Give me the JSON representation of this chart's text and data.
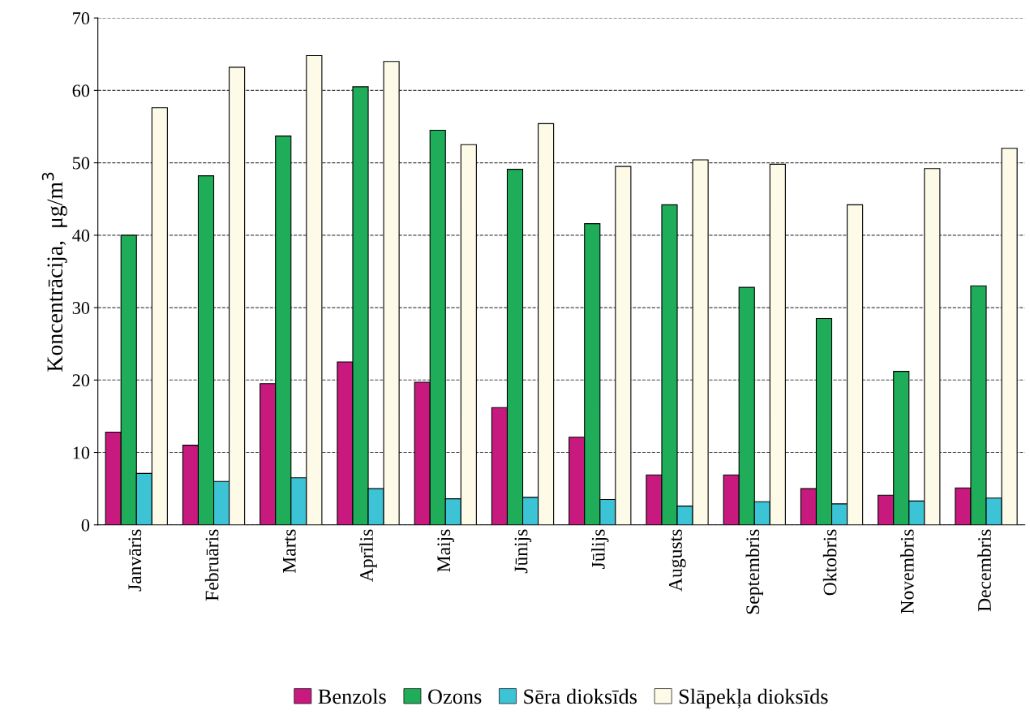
{
  "chart_data": {
    "type": "bar",
    "ylabel": "Koncentrācija,  μg/m$^{3}$",
    "categories": [
      "Janvāris",
      "Februāris",
      "Marts",
      "Aprīlis",
      "Maijs",
      "Jūnijs",
      "Jūlijs",
      "Augusts",
      "Septembris",
      "Oktobris",
      "Novembris",
      "Decembris"
    ],
    "series": [
      {
        "name": "Benzols",
        "color": "#c8197f",
        "values": [
          12.8,
          11,
          19.5,
          22.5,
          19.7,
          16.2,
          12.1,
          6.9,
          6.9,
          5,
          4.1,
          5.1
        ]
      },
      {
        "name": "Ozons",
        "color": "#1fad5a",
        "values": [
          40,
          48.2,
          53.7,
          60.5,
          54.5,
          49.1,
          41.6,
          44.2,
          32.8,
          28.5,
          21.2,
          33
        ]
      },
      {
        "name": "Sēra dioksīds",
        "color": "#3cc3d6",
        "values": [
          7.1,
          6,
          6.5,
          5,
          3.6,
          3.8,
          3.5,
          2.6,
          3.2,
          2.9,
          3.3,
          3.7
        ]
      },
      {
        "name": "Slāpekļa dioksīds",
        "color": "#fdfbe8",
        "values": [
          57.6,
          63.2,
          64.8,
          64,
          52.5,
          55.4,
          49.5,
          50.4,
          49.8,
          44.2,
          49.2,
          52
        ]
      }
    ],
    "ylim": [
      0,
      70
    ],
    "yticks": [
      0,
      10,
      20,
      30,
      40,
      50,
      60,
      70
    ],
    "grid": "y",
    "legend": "bottom"
  }
}
